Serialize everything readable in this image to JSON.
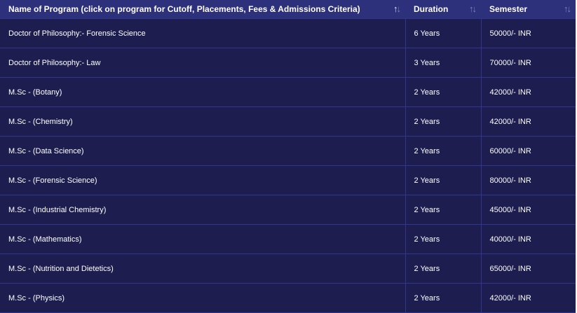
{
  "headers": [
    "Name of Program (click on program for Cutoff, Placements, Fees & Admissions Criteria)",
    "Duration",
    "Semester"
  ],
  "sort_icons": [
    "sort-icon",
    "sort-icon",
    "sort-icon"
  ],
  "rows": [
    [
      "Doctor of Philosophy:- Forensic Science",
      "6 Years",
      "50000/- INR"
    ],
    [
      "Doctor of Philosophy:- Law",
      "3 Years",
      "70000/- INR"
    ],
    [
      "M.Sc - (Botany)",
      "2 Years",
      "42000/- INR"
    ],
    [
      "M.Sc - (Chemistry)",
      "2 Years",
      "42000/- INR"
    ],
    [
      "M.Sc - (Data Science)",
      "2 Years",
      "60000/- INR"
    ],
    [
      "M.Sc - (Forensic Science)",
      "2 Years",
      "80000/- INR"
    ],
    [
      "M.Sc - (Industrial Chemistry)",
      "2 Years",
      "45000/- INR"
    ],
    [
      "M.Sc - (Mathematics)",
      "2 Years",
      "40000/- INR"
    ],
    [
      "M.Sc - (Nutrition and Dietetics)",
      "2 Years",
      "65000/- INR"
    ],
    [
      "M.Sc - (Physics)",
      "2 Years",
      "42000/- INR"
    ]
  ]
}
